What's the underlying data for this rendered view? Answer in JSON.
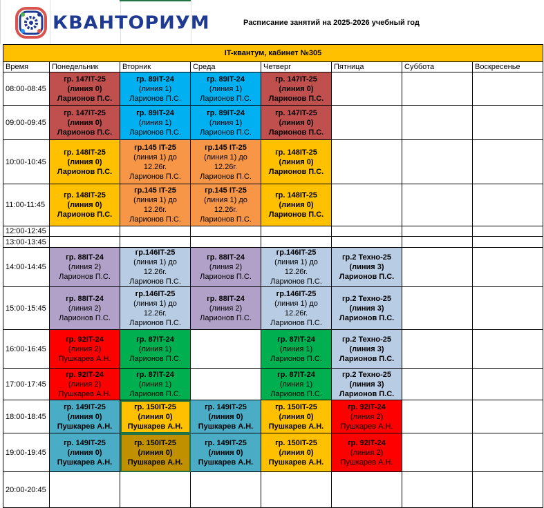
{
  "header": {
    "logo_text": "КВАНТОРИУМ",
    "title": "Расписание занятий на 2025-2026 учебный год"
  },
  "banner": "IT-квантум, кабинет №305",
  "columns": [
    "Время",
    "Понедельник",
    "Вторник",
    "Среда",
    "Четверг",
    "Пятница",
    "Суббота",
    "Воскресенье"
  ],
  "colors": {
    "rust": "#C0504D",
    "cyan": "#00B0F0",
    "amber": "#FFC000",
    "orange": "#F79646",
    "purple": "#B1A0C7",
    "lightblue": "#B8CCE4",
    "red": "#FF0000",
    "green": "#00B050",
    "teal": "#4BACC6",
    "gold": "#C09000"
  },
  "rows": [
    {
      "time": "08:00-08:45",
      "cells": [
        {
          "g": "гр. 147IT-25",
          "l": "(линия 0)",
          "t": "Ларионов П.С.",
          "bold": "all",
          "c": "rust"
        },
        {
          "g": "гр. 89IT-24",
          "l": "(линия 1)",
          "t": "Ларионов П.С.",
          "bold": "group",
          "c": "cyan"
        },
        {
          "g": "гр. 89IT-24",
          "l": "(линия 1)",
          "t": "Ларионов П.С.",
          "bold": "group",
          "c": "cyan"
        },
        {
          "g": "гр. 147IT-25",
          "l": "(линия 0)",
          "t": "Ларионов П.С.",
          "bold": "all",
          "c": "rust"
        },
        null,
        null,
        null
      ]
    },
    {
      "time": "09:00-09:45",
      "cells": [
        {
          "g": "гр. 147IT-25",
          "l": "(линия 0)",
          "t": "Ларионов П.С.",
          "bold": "all",
          "c": "rust"
        },
        {
          "g": "гр. 89IT-24",
          "l": "(линия 1)",
          "t": "Ларионов П.С.",
          "bold": "group",
          "c": "cyan"
        },
        {
          "g": "гр. 89IT-24",
          "l": "(линия 1)",
          "t": "Ларионов П.С.",
          "bold": "group",
          "c": "cyan"
        },
        {
          "g": "гр. 147IT-25",
          "l": "(линия 0)",
          "t": "Ларионов П.С.",
          "bold": "all",
          "c": "rust"
        },
        null,
        null,
        null
      ]
    },
    {
      "time": "10:00-10:45",
      "cells": [
        {
          "g": "гр. 148IT-25",
          "l": "(линия 0)",
          "t": "Ларионов П.С.",
          "bold": "all",
          "c": "amber"
        },
        {
          "g": "гр.145 IT-25",
          "l": "(линия 1) до 12.26г.",
          "t": "Ларионов П.С.",
          "bold": "group",
          "c": "orange"
        },
        {
          "g": "гр.145 IT-25",
          "l": "(линия 1) до 12.26г.",
          "t": "Ларионов П.С.",
          "bold": "group",
          "c": "orange"
        },
        {
          "g": "гр. 148IT-25",
          "l": "(линия 0)",
          "t": "Ларионов П.С.",
          "bold": "all",
          "c": "amber"
        },
        null,
        null,
        null
      ]
    },
    {
      "time": "11:00-11:45",
      "cells": [
        {
          "g": "гр. 148IT-25",
          "l": "(линия 0)",
          "t": "Ларионов П.С.",
          "bold": "all",
          "c": "amber"
        },
        {
          "g": "гр.145 IT-25",
          "l": "(линия 1) до 12.26г.",
          "t": "Ларионов П.С.",
          "bold": "group",
          "c": "orange"
        },
        {
          "g": "гр.145 IT-25",
          "l": "(линия 1) до 12.26г.",
          "t": "Ларионов П.С.",
          "bold": "group",
          "c": "orange"
        },
        {
          "g": "гр. 148IT-25",
          "l": "(линия 0)",
          "t": "Ларионов П.С.",
          "bold": "all",
          "c": "amber"
        },
        null,
        null,
        null
      ]
    },
    {
      "time": "12:00-12:45",
      "cells": [
        null,
        null,
        null,
        null,
        null,
        null,
        null
      ]
    },
    {
      "time": "13:00-13:45",
      "cells": [
        null,
        null,
        null,
        null,
        null,
        null,
        null
      ]
    },
    {
      "time": "14:00-14:45",
      "cells": [
        {
          "g": "гр. 88IT-24",
          "l": "(линия 2)",
          "t": "Ларионов П.С.",
          "bold": "group",
          "c": "purple"
        },
        {
          "g": "гр.146IT-25",
          "l": "(линия 1) до 12.26г.",
          "t": "Ларионов П.С.",
          "bold": "group",
          "c": "lightblue"
        },
        {
          "g": "гр. 88IT-24",
          "l": "(линия 2)",
          "t": "Ларионов П.С.",
          "bold": "group",
          "c": "purple"
        },
        {
          "g": "гр.146IT-25",
          "l": "(линия 1) до 12.26г.",
          "t": "Ларионов П.С.",
          "bold": "group",
          "c": "lightblue"
        },
        {
          "g": "гр.2 Техно-25",
          "l": "(линия 3)",
          "t": "Ларионов П.С.",
          "bold": "all",
          "c": "lightblue"
        },
        null,
        null
      ]
    },
    {
      "time": "15:00-15:45",
      "cells": [
        {
          "g": "гр. 88IT-24",
          "l": "(линия 2)",
          "t": "Ларионов П.С.",
          "bold": "group",
          "c": "purple"
        },
        {
          "g": "гр.146IT-25",
          "l": "(линия 1) до 12.26г.",
          "t": "Ларионов П.С.",
          "bold": "group",
          "c": "lightblue"
        },
        {
          "g": "гр. 88IT-24",
          "l": "(линия 2)",
          "t": "Ларионов П.С.",
          "bold": "group",
          "c": "purple"
        },
        {
          "g": "гр.146IT-25",
          "l": "(линия 1) до 12.26г.",
          "t": "Ларионов П.С.",
          "bold": "group",
          "c": "lightblue"
        },
        {
          "g": "гр.2 Техно-25",
          "l": "(линия 3)",
          "t": "Ларионов П.С.",
          "bold": "all",
          "c": "lightblue"
        },
        null,
        null
      ]
    },
    {
      "time": "16:00-16:45",
      "cells": [
        {
          "g": "гр. 92IT-24",
          "l": "(линия 2)",
          "t": "Пушкарев А.Н.",
          "bold": "group",
          "c": "red"
        },
        {
          "g": "гр. 87IT-24",
          "l": "(линия 1)",
          "t": "Ларионов П.С.",
          "bold": "group",
          "c": "green"
        },
        null,
        {
          "g": "гр. 87IT-24",
          "l": "(линия 1)",
          "t": "Ларионов П.С.",
          "bold": "group",
          "c": "green"
        },
        {
          "g": "гр.2 Техно-25",
          "l": "(линия 3)",
          "t": "Ларионов П.С.",
          "bold": "all",
          "c": "lightblue"
        },
        null,
        null
      ]
    },
    {
      "time": "17:00-17:45",
      "cells": [
        {
          "g": "гр. 92IT-24",
          "l": "(линия 2)",
          "t": "Пушкарев А.Н.",
          "bold": "group",
          "c": "red"
        },
        {
          "g": "гр. 87IT-24",
          "l": "(линия 1)",
          "t": "Ларионов П.С.",
          "bold": "group",
          "c": "green"
        },
        null,
        {
          "g": "гр. 87IT-24",
          "l": "(линия 1)",
          "t": "Ларионов П.С.",
          "bold": "group",
          "c": "green"
        },
        {
          "g": "гр.2 Техно-25",
          "l": "(линия 3)",
          "t": "Ларионов П.С.",
          "bold": "all",
          "c": "lightblue"
        },
        null,
        null
      ]
    },
    {
      "time": "18:00-18:45",
      "cells": [
        {
          "g": "гр. 149IT-25",
          "l": "(линия 0)",
          "t": "Пушкарев А.Н.",
          "bold": "all",
          "c": "teal"
        },
        {
          "g": "гр. 150IT-25",
          "l": "(линия 0)",
          "t": "Пушкарев А.Н.",
          "bold": "all",
          "c": "amber",
          "sel": true
        },
        {
          "g": "гр. 149IT-25",
          "l": "(линия 0)",
          "t": "Пушкарев А.Н.",
          "bold": "all",
          "c": "teal"
        },
        {
          "g": "гр. 150IT-25",
          "l": "(линия 0)",
          "t": "Пушкарев А.Н.",
          "bold": "all",
          "c": "amber"
        },
        {
          "g": "гр. 92IT-24",
          "l": "(линия 2)",
          "t": "Пушкарев А.Н.",
          "bold": "group",
          "c": "red"
        },
        null,
        null
      ]
    },
    {
      "time": "19:00-19:45",
      "cells": [
        {
          "g": "гр. 149IT-25",
          "l": "(линия 0)",
          "t": "Пушкарев А.Н.",
          "bold": "all",
          "c": "teal"
        },
        {
          "g": "гр. 150IT-25",
          "l": "(линия 0)",
          "t": "Пушкарев А.Н.",
          "bold": "all",
          "c": "gold",
          "sel": true
        },
        {
          "g": "гр. 149IT-25",
          "l": "(линия 0)",
          "t": "Пушкарев А.Н.",
          "bold": "all",
          "c": "teal"
        },
        {
          "g": "гр. 150IT-25",
          "l": "(линия 0)",
          "t": "Пушкарев А.Н.",
          "bold": "all",
          "c": "amber"
        },
        {
          "g": "гр. 92IT-24",
          "l": "(линия 2)",
          "t": "Пушкарев А.Н.",
          "bold": "group",
          "c": "red"
        },
        null,
        null
      ]
    },
    {
      "time": "20:00-20:45",
      "cells": [
        null,
        null,
        null,
        null,
        null,
        null,
        null
      ]
    }
  ]
}
